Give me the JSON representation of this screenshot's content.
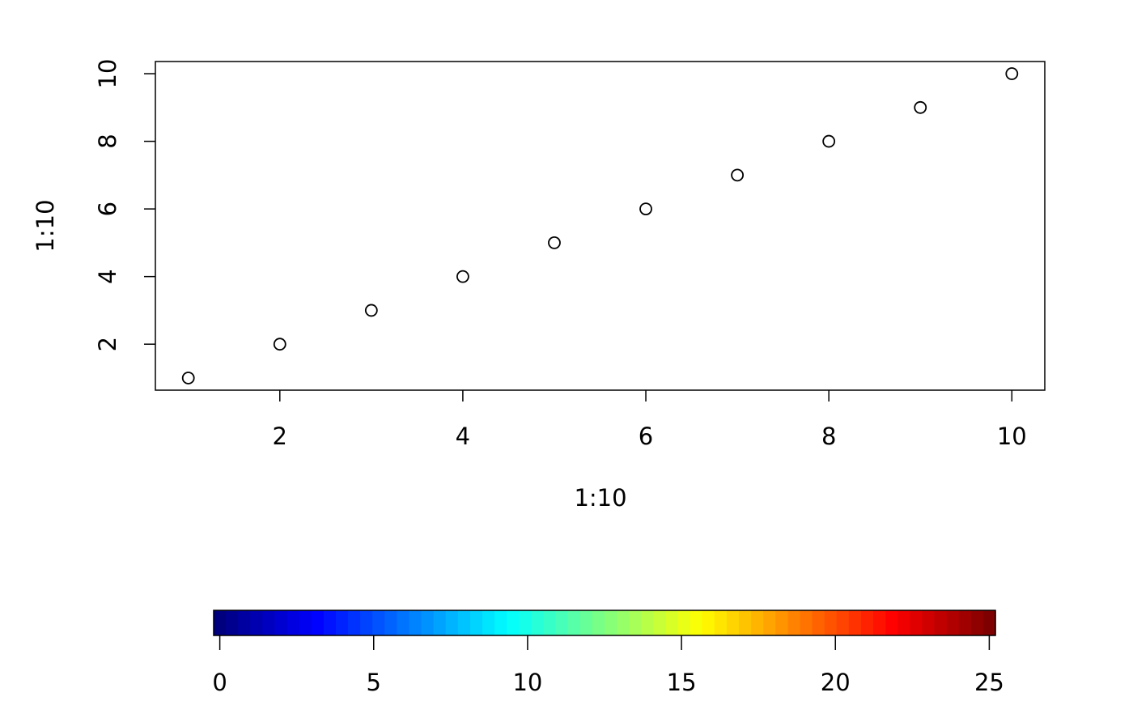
{
  "chart_data": [
    {
      "type": "scatter",
      "xlabel": "1:10",
      "ylabel": "1:10",
      "x": [
        1,
        2,
        3,
        4,
        5,
        6,
        7,
        8,
        9,
        10
      ],
      "values": [
        1,
        2,
        3,
        4,
        5,
        6,
        7,
        8,
        9,
        10
      ],
      "xlim": [
        0.64,
        10.36
      ],
      "ylim": [
        0.64,
        10.36
      ],
      "xticks": [
        2,
        4,
        6,
        8,
        10
      ],
      "yticks": [
        2,
        4,
        6,
        8,
        10
      ],
      "color": "#000000"
    },
    {
      "type": "colorbar",
      "colors": [
        "#00007F",
        "#0000FF",
        "#007FFF",
        "#00FFFF",
        "#7FFF7F",
        "#FFFF00",
        "#FF7F00",
        "#FF0000",
        "#7F0000"
      ],
      "levels": 64,
      "xlim": [
        -0.2,
        25.2
      ],
      "xticks": [
        0,
        5,
        10,
        15,
        20,
        25
      ]
    }
  ]
}
